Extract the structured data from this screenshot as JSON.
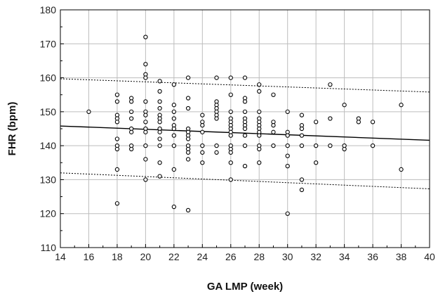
{
  "chart_data": {
    "type": "scatter",
    "title": "",
    "xlabel": "GA LMP (week)",
    "ylabel": "FHR (bpm)",
    "xlim": [
      14,
      40
    ],
    "ylim": [
      110,
      180
    ],
    "x_ticks": [
      14,
      16,
      18,
      20,
      22,
      24,
      26,
      28,
      30,
      32,
      34,
      36,
      38,
      40
    ],
    "y_ticks": [
      110,
      120,
      130,
      140,
      150,
      160,
      170,
      180
    ],
    "grid": true,
    "series": [
      {
        "marker": "open-circle",
        "points": [
          [
            16,
            150
          ],
          [
            18,
            155
          ],
          [
            18,
            153
          ],
          [
            18,
            149
          ],
          [
            18,
            148
          ],
          [
            18,
            147
          ],
          [
            18,
            142
          ],
          [
            18,
            140
          ],
          [
            18,
            139
          ],
          [
            18,
            133
          ],
          [
            18,
            123
          ],
          [
            19,
            154
          ],
          [
            19,
            153
          ],
          [
            19,
            150
          ],
          [
            19,
            148
          ],
          [
            19,
            145
          ],
          [
            19,
            144
          ],
          [
            19,
            140
          ],
          [
            19,
            139
          ],
          [
            20,
            172
          ],
          [
            20,
            164
          ],
          [
            20,
            161
          ],
          [
            20,
            160
          ],
          [
            20,
            153
          ],
          [
            20,
            150
          ],
          [
            20,
            149
          ],
          [
            20,
            147
          ],
          [
            20,
            145
          ],
          [
            20,
            144
          ],
          [
            20,
            140
          ],
          [
            20,
            136
          ],
          [
            20,
            130
          ],
          [
            21,
            159
          ],
          [
            21,
            156
          ],
          [
            21,
            153
          ],
          [
            21,
            151
          ],
          [
            21,
            149
          ],
          [
            21,
            148
          ],
          [
            21,
            147
          ],
          [
            21,
            145
          ],
          [
            21,
            144
          ],
          [
            21,
            142
          ],
          [
            21,
            140
          ],
          [
            21,
            135
          ],
          [
            21,
            131
          ],
          [
            22,
            158
          ],
          [
            22,
            152
          ],
          [
            22,
            150
          ],
          [
            22,
            148
          ],
          [
            22,
            146
          ],
          [
            22,
            145
          ],
          [
            22,
            143
          ],
          [
            22,
            140
          ],
          [
            22,
            133
          ],
          [
            22,
            122
          ],
          [
            23,
            160
          ],
          [
            23,
            154
          ],
          [
            23,
            151
          ],
          [
            23,
            145
          ],
          [
            23,
            144
          ],
          [
            23,
            143
          ],
          [
            23,
            142
          ],
          [
            23,
            140
          ],
          [
            23,
            139
          ],
          [
            23,
            138
          ],
          [
            23,
            136
          ],
          [
            23,
            121
          ],
          [
            24,
            149
          ],
          [
            24,
            147
          ],
          [
            24,
            146
          ],
          [
            24,
            144
          ],
          [
            24,
            140
          ],
          [
            24,
            138
          ],
          [
            24,
            135
          ],
          [
            25,
            160
          ],
          [
            25,
            153
          ],
          [
            25,
            152
          ],
          [
            25,
            151
          ],
          [
            25,
            150
          ],
          [
            25,
            149
          ],
          [
            25,
            148
          ],
          [
            25,
            140
          ],
          [
            25,
            138
          ],
          [
            26,
            160
          ],
          [
            26,
            155
          ],
          [
            26,
            150
          ],
          [
            26,
            148
          ],
          [
            26,
            147
          ],
          [
            26,
            146
          ],
          [
            26,
            145
          ],
          [
            26,
            144
          ],
          [
            26,
            143
          ],
          [
            26,
            140
          ],
          [
            26,
            139
          ],
          [
            26,
            138
          ],
          [
            26,
            135
          ],
          [
            26,
            130
          ],
          [
            27,
            160
          ],
          [
            27,
            154
          ],
          [
            27,
            153
          ],
          [
            27,
            150
          ],
          [
            27,
            148
          ],
          [
            27,
            147
          ],
          [
            27,
            146
          ],
          [
            27,
            145
          ],
          [
            27,
            143
          ],
          [
            27,
            140
          ],
          [
            27,
            134
          ],
          [
            28,
            158
          ],
          [
            28,
            156
          ],
          [
            28,
            150
          ],
          [
            28,
            148
          ],
          [
            28,
            147
          ],
          [
            28,
            146
          ],
          [
            28,
            145
          ],
          [
            28,
            144
          ],
          [
            28,
            143
          ],
          [
            28,
            140
          ],
          [
            28,
            139
          ],
          [
            28,
            135
          ],
          [
            29,
            155
          ],
          [
            29,
            147
          ],
          [
            29,
            146
          ],
          [
            29,
            144
          ],
          [
            29,
            140
          ],
          [
            30,
            150
          ],
          [
            30,
            144
          ],
          [
            30,
            143
          ],
          [
            30,
            140
          ],
          [
            30,
            137
          ],
          [
            30,
            134
          ],
          [
            30,
            120
          ],
          [
            31,
            149
          ],
          [
            31,
            146
          ],
          [
            31,
            145
          ],
          [
            31,
            143
          ],
          [
            31,
            140
          ],
          [
            31,
            130
          ],
          [
            31,
            127
          ],
          [
            32,
            147
          ],
          [
            32,
            140
          ],
          [
            32,
            135
          ],
          [
            33,
            158
          ],
          [
            33,
            148
          ],
          [
            33,
            140
          ],
          [
            34,
            152
          ],
          [
            34,
            140
          ],
          [
            34,
            139
          ],
          [
            35,
            148
          ],
          [
            35,
            147
          ],
          [
            36,
            147
          ],
          [
            36,
            140
          ],
          [
            38,
            152
          ],
          [
            38,
            133
          ]
        ]
      }
    ],
    "regression_line": {
      "style": "solid",
      "start": [
        14,
        145.8
      ],
      "end": [
        40,
        141.6
      ]
    },
    "confidence_bands": [
      {
        "style": "dotted",
        "start": [
          14,
          159.7
        ],
        "end": [
          40,
          155.8
        ]
      },
      {
        "style": "dotted",
        "start": [
          14,
          132.0
        ],
        "end": [
          40,
          127.3
        ]
      }
    ]
  }
}
